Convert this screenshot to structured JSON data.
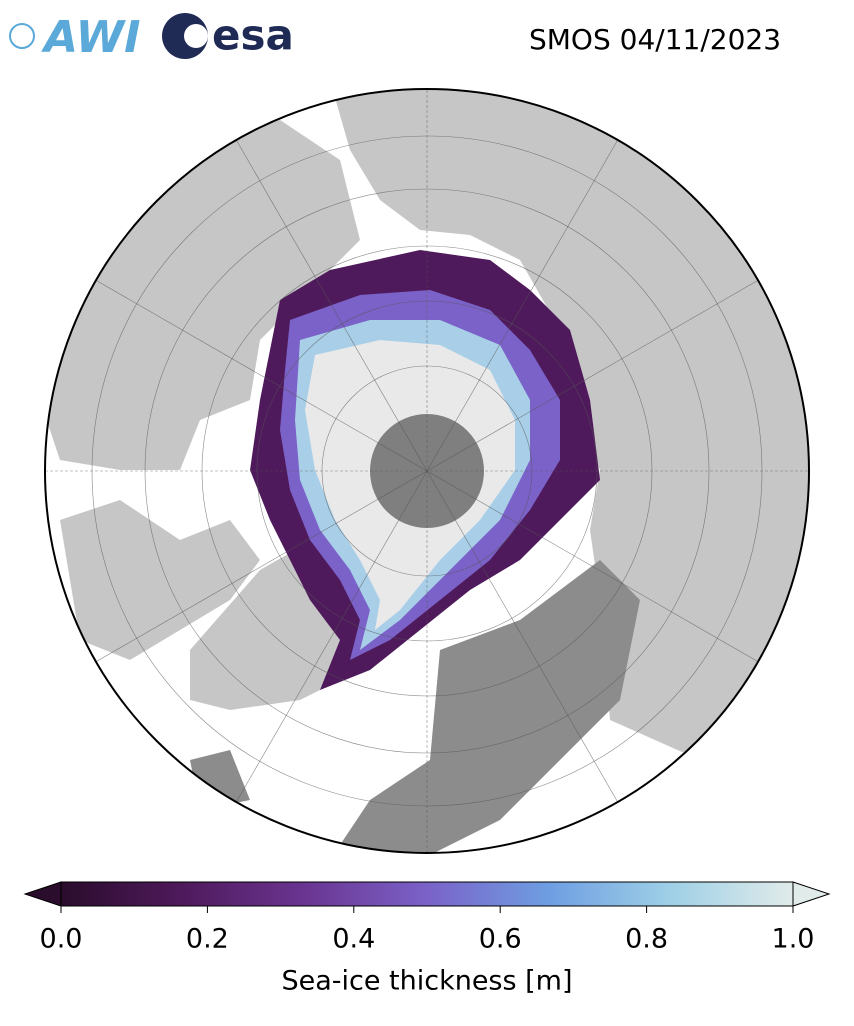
{
  "header": {
    "logos": [
      "AWI",
      "esa"
    ],
    "title": "SMOS 04/11/2023"
  },
  "colorbar": {
    "label": "Sea-ice thickness [m]",
    "lim": [
      0,
      1
    ],
    "ticks": [
      {
        "value": 0,
        "label": "0.0"
      },
      {
        "value": 0.2,
        "label": "0.2"
      },
      {
        "value": 0.4,
        "label": "0.4"
      },
      {
        "value": 0.6,
        "label": "0.6"
      },
      {
        "value": 0.8,
        "label": "0.8"
      },
      {
        "value": 1,
        "label": "1.0"
      }
    ],
    "colors": [
      "#2a0c2c",
      "#4f1a5c",
      "#6a3591",
      "#7a62c8",
      "#6e9ee2",
      "#9fd0e6",
      "#e1ebea"
    ]
  }
}
